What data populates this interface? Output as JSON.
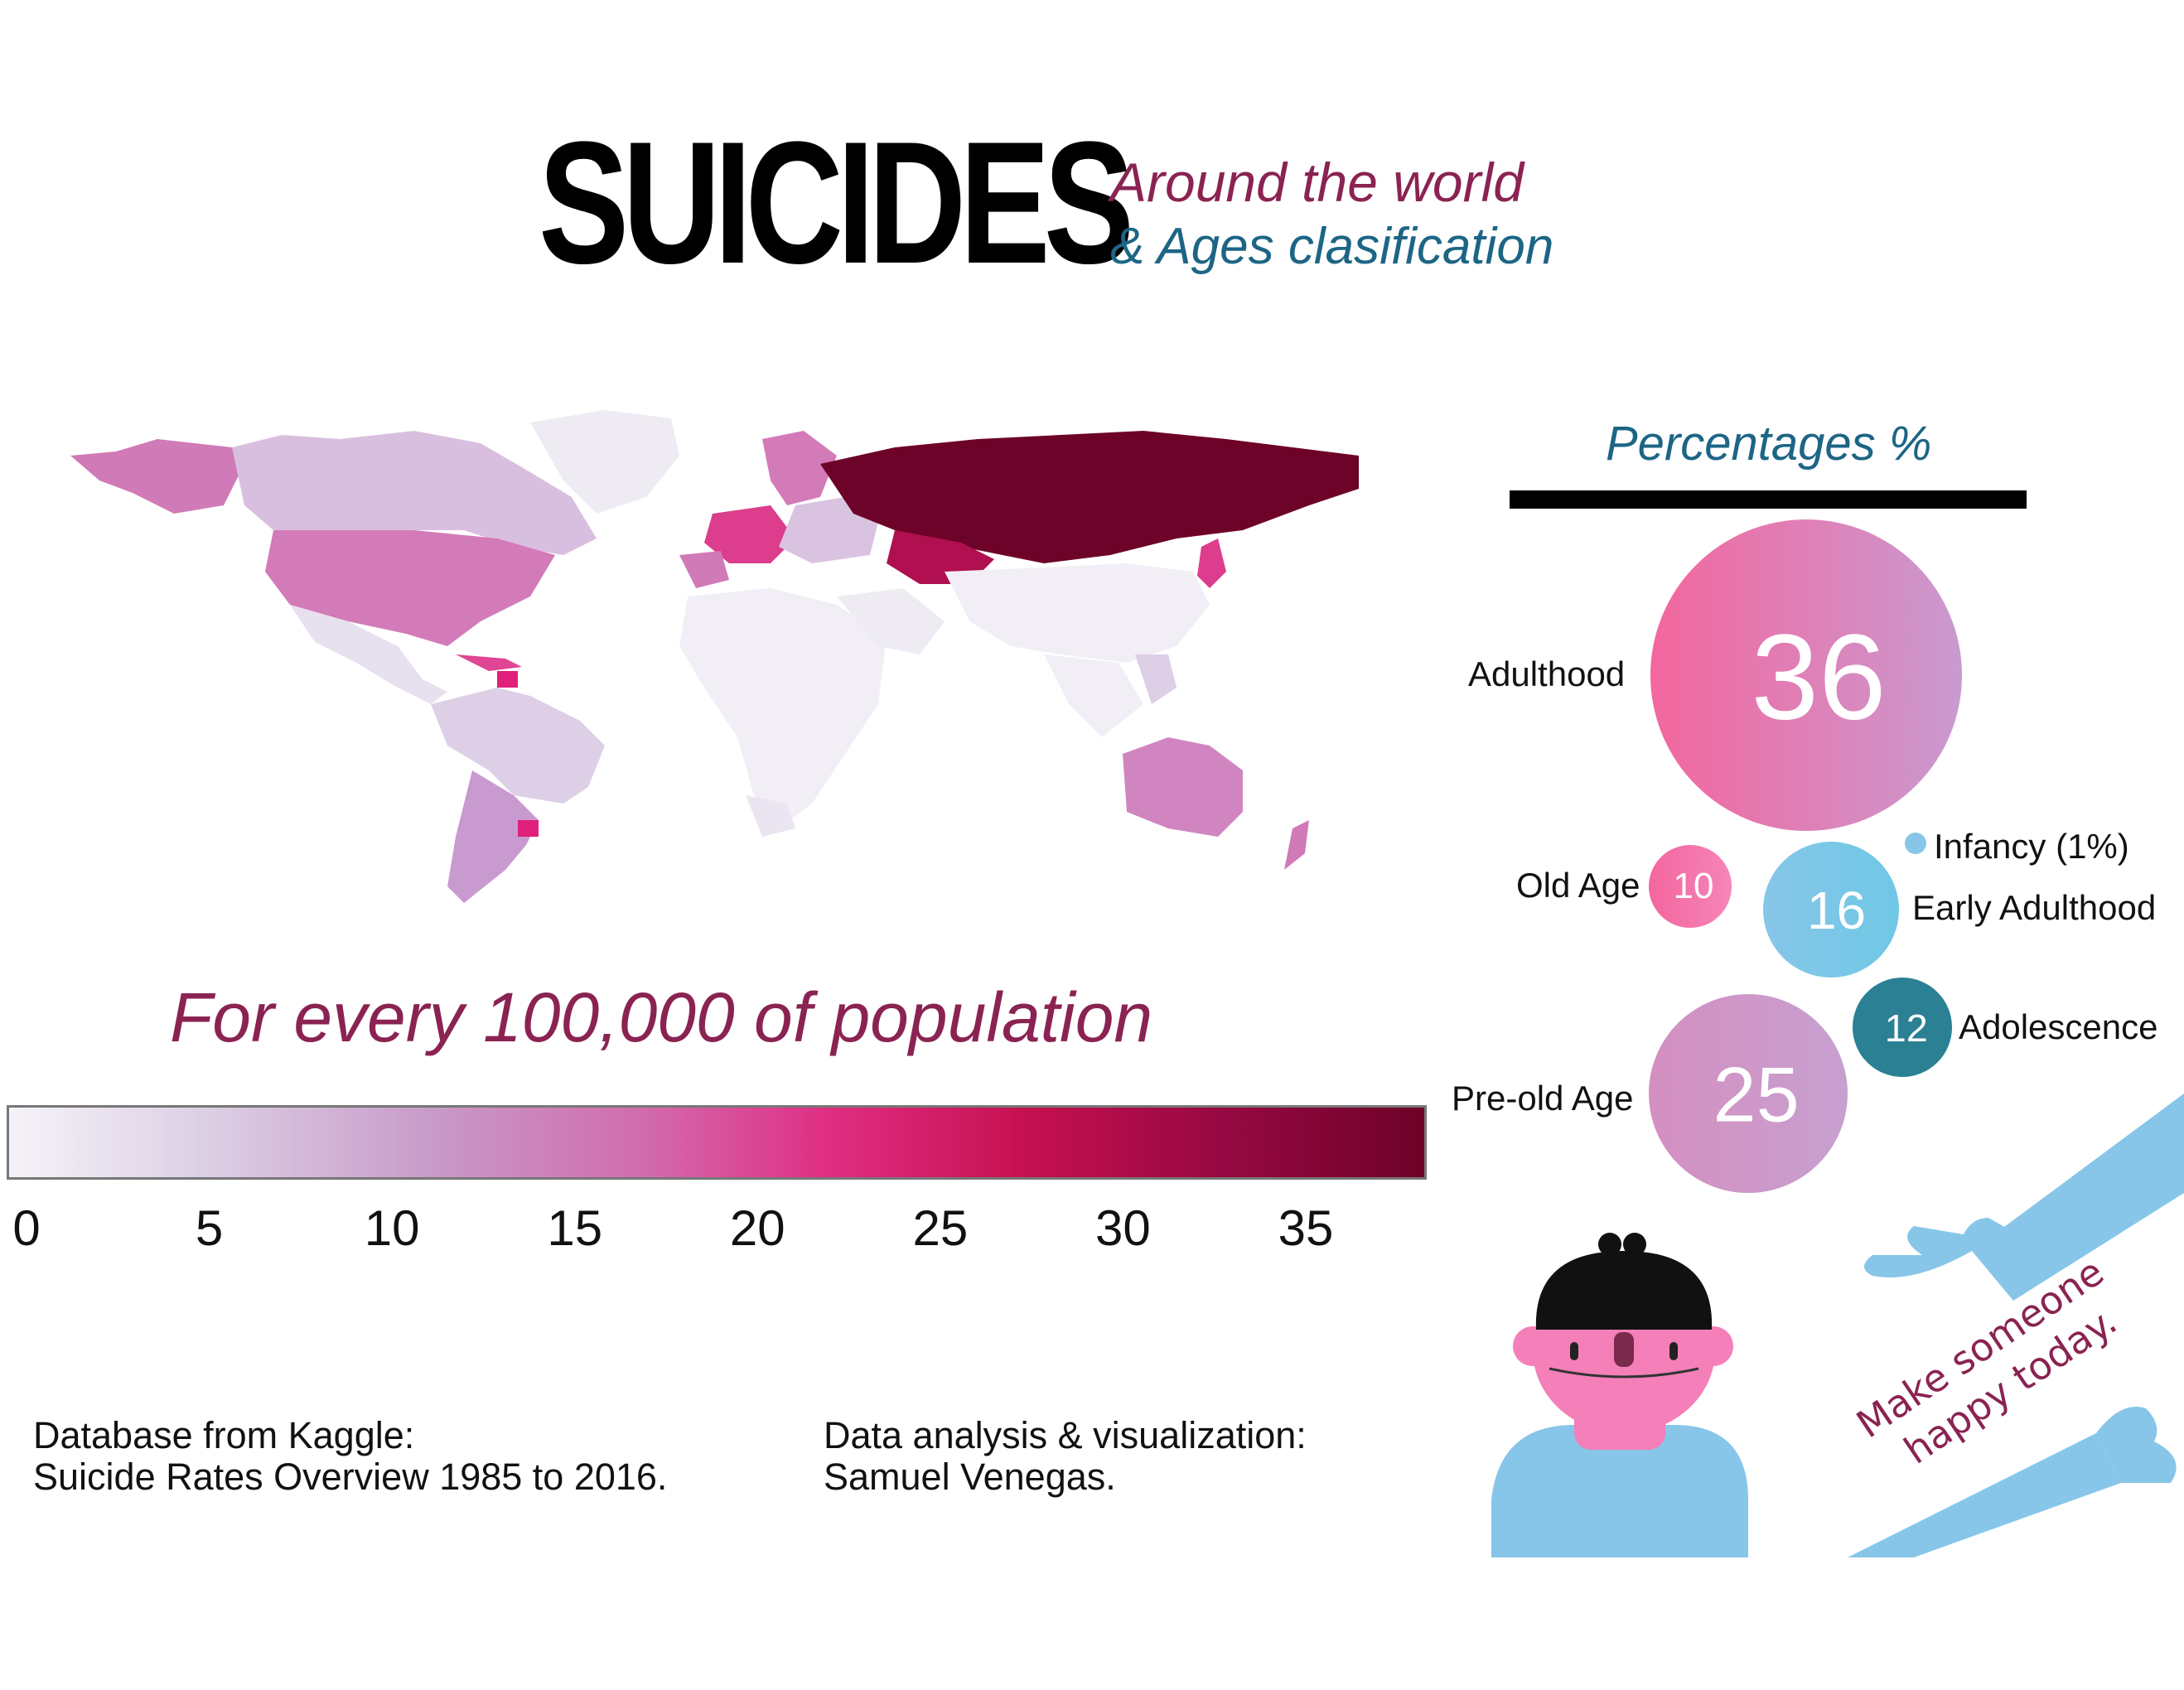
{
  "header": {
    "title": "SUICIDES",
    "subtitle_line1": "Around the world",
    "subtitle_line2": "& Ages clasification"
  },
  "colors": {
    "title": "#000000",
    "accent_magenta": "#8a2352",
    "accent_teal": "#1d6585",
    "pink": "#f4669e",
    "light_blue": "#87c6e8",
    "dark_teal": "#2b8093"
  },
  "map": {
    "caption": "For every 100,000 of population",
    "colorbar_ticks": [
      "0",
      "5",
      "10",
      "15",
      "20",
      "25",
      "30",
      "35"
    ]
  },
  "chart_data": {
    "type": "bubble",
    "title": "Percentages %",
    "series": [
      {
        "label": "Adulthood",
        "value": 36,
        "display": "36",
        "color": "#f4669e"
      },
      {
        "label": "Old Age",
        "value": 10,
        "display": "10",
        "color": "#f4669e"
      },
      {
        "label": "Early Adulthood",
        "value": 16,
        "display": "16",
        "color": "#87c6e8"
      },
      {
        "label": "Adolescence",
        "value": 12,
        "display": "12",
        "color": "#2b8093"
      },
      {
        "label": "Pre-old Age",
        "value": 25,
        "display": "25",
        "color": "#d48fc0"
      },
      {
        "label": "Infancy (1%)",
        "value": 1,
        "display": "",
        "color": "#87c6e8"
      }
    ]
  },
  "credits": {
    "source_line1": "Database from Kaggle:",
    "source_line2": "Suicide Rates Overview 1985 to 2016.",
    "author_line1": "Data analysis & visualization:",
    "author_line2": "Samuel Venegas."
  },
  "illustration": {
    "note_line1": "Make someone",
    "note_line2": "happy today."
  }
}
